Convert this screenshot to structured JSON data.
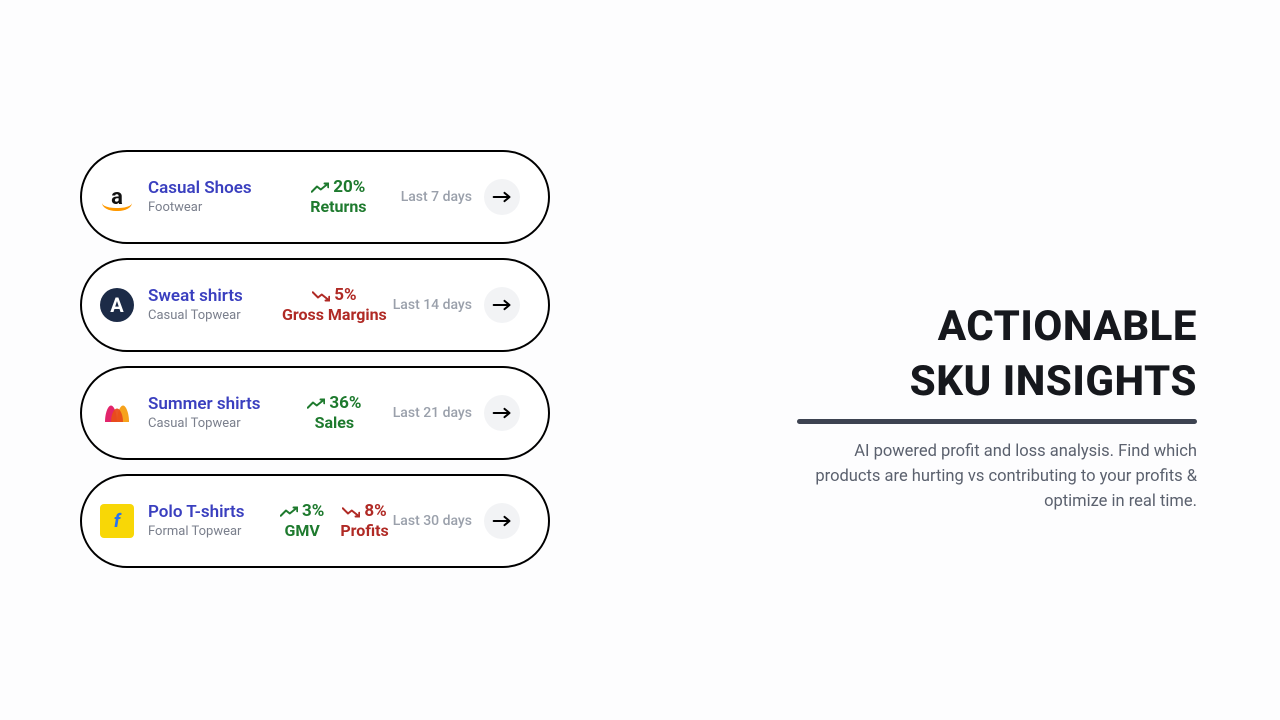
{
  "headline_line1": "ACTIONABLE",
  "headline_line2": "SKU INSIGHTS",
  "description": "AI powered profit and loss analysis. Find which products are hurting vs contributing to your profits & optimize in real time.",
  "cards": [
    {
      "brand": "amazon",
      "brand_glyph": "a",
      "title": "Casual Shoes",
      "subtitle": "Footwear",
      "metrics": [
        {
          "direction": "up",
          "value": "20%",
          "label": "Returns"
        }
      ],
      "period": "Last 7 days"
    },
    {
      "brand": "ajio",
      "brand_glyph": "A",
      "title": "Sweat shirts",
      "subtitle": "Casual Topwear",
      "metrics": [
        {
          "direction": "down",
          "value": "5%",
          "label": "Gross Margins"
        }
      ],
      "period": "Last 14 days"
    },
    {
      "brand": "myntra",
      "brand_glyph": "",
      "title": "Summer shirts",
      "subtitle": "Casual Topwear",
      "metrics": [
        {
          "direction": "up",
          "value": "36%",
          "label": "Sales"
        }
      ],
      "period": "Last 21 days"
    },
    {
      "brand": "flipkart",
      "brand_glyph": "f",
      "title": "Polo T-shirts",
      "subtitle": "Formal Topwear",
      "metrics": [
        {
          "direction": "up",
          "value": "3%",
          "label": "GMV"
        },
        {
          "direction": "down",
          "value": "8%",
          "label": "Profits"
        }
      ],
      "period": "Last 30 days"
    }
  ],
  "colors": {
    "title_link": "#3a3fbf",
    "subtitle": "#7a7f8c",
    "metric_up": "#1e7a2e",
    "metric_down": "#b02a25",
    "period": "#9aa0ab",
    "headline": "#16181d",
    "underline": "#3d4351",
    "description": "#5b616e",
    "arrow_bg": "#f2f3f5",
    "card_border": "#000000",
    "page_bg": "#fdfdfe"
  }
}
